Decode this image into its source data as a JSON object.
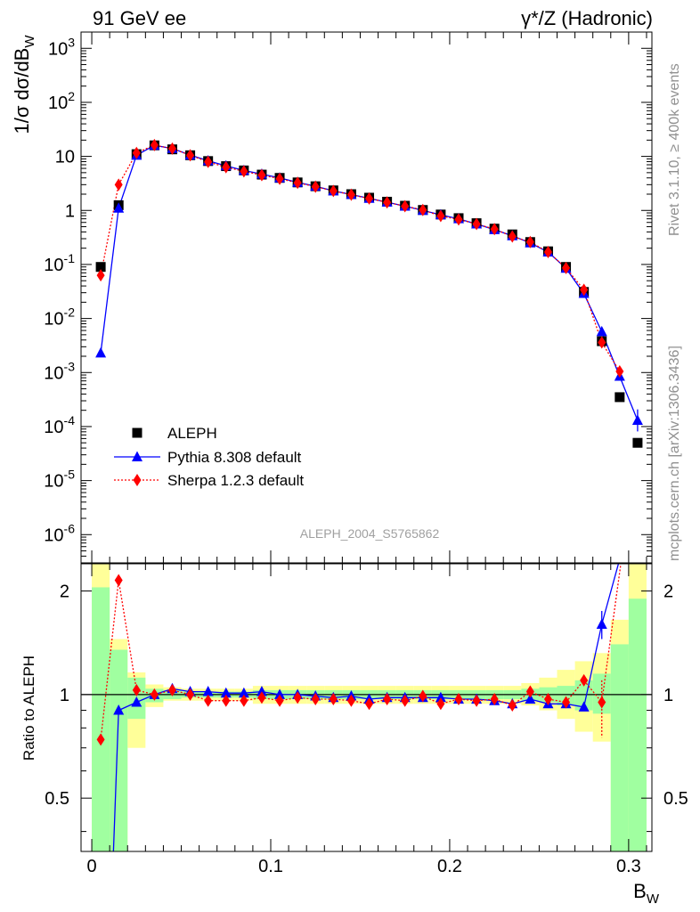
{
  "header": {
    "left": "91 GeV ee",
    "right": "γ*/Z (Hadronic)"
  },
  "side_labels": {
    "rivet": "Rivet 3.1.10, ≥ 400k events",
    "mcplots": "mcplots.cern.ch [arXiv:1306.3436]"
  },
  "watermark": "ALEPH_2004_S5765862",
  "chart_data": [
    {
      "type": "line",
      "panel": "main",
      "ylabel": "1/σ dσ/dB_W",
      "yscale": "log",
      "ylim": [
        3e-07,
        2000
      ],
      "xlim": [
        -0.006,
        0.313
      ],
      "ytick_labels": [
        "10^3",
        "10^2",
        "10",
        "1",
        "10^-1",
        "10^-2",
        "10^-3",
        "10^-4",
        "10^-5",
        "10^-6"
      ],
      "legend": [
        "ALEPH",
        "Pythia 8.308 default",
        "Sherpa 1.2.3 default"
      ],
      "legend_position": "lower-left",
      "series": [
        {
          "name": "ALEPH",
          "color": "#000000",
          "marker": "square",
          "x": [
            0.005,
            0.015,
            0.025,
            0.035,
            0.045,
            0.055,
            0.065,
            0.075,
            0.085,
            0.095,
            0.105,
            0.115,
            0.125,
            0.135,
            0.145,
            0.155,
            0.165,
            0.175,
            0.185,
            0.195,
            0.205,
            0.215,
            0.225,
            0.235,
            0.245,
            0.255,
            0.265,
            0.275,
            0.285,
            0.295,
            0.305
          ],
          "values": [
            0.09,
            1.25,
            11,
            16,
            13.5,
            10.5,
            8.2,
            6.6,
            5.5,
            4.6,
            4.0,
            3.3,
            2.8,
            2.35,
            2.0,
            1.72,
            1.45,
            1.22,
            1.02,
            0.84,
            0.72,
            0.58,
            0.46,
            0.36,
            0.26,
            0.175,
            0.09,
            0.031,
            0.0038,
            0.00035,
            5e-05
          ]
        },
        {
          "name": "Pythia 8.308 default",
          "color": "#0000ff",
          "marker": "triangle",
          "line": "solid",
          "x": [
            0.005,
            0.015,
            0.025,
            0.035,
            0.045,
            0.055,
            0.065,
            0.075,
            0.085,
            0.095,
            0.105,
            0.115,
            0.125,
            0.135,
            0.145,
            0.155,
            0.165,
            0.175,
            0.185,
            0.195,
            0.205,
            0.215,
            0.225,
            0.235,
            0.245,
            0.255,
            0.265,
            0.275,
            0.285,
            0.295,
            0.305
          ],
          "values": [
            0.0023,
            1.1,
            10.5,
            16,
            14,
            10.6,
            8.3,
            6.7,
            5.5,
            4.7,
            4.0,
            3.3,
            2.8,
            2.3,
            1.97,
            1.67,
            1.42,
            1.2,
            1.0,
            0.83,
            0.7,
            0.56,
            0.44,
            0.34,
            0.25,
            0.17,
            0.085,
            0.029,
            0.0057,
            0.00085,
            0.00013
          ]
        },
        {
          "name": "Sherpa 1.2.3 default",
          "color": "#ff0000",
          "marker": "diamond",
          "line": "dotted",
          "x": [
            0.005,
            0.015,
            0.025,
            0.035,
            0.045,
            0.055,
            0.065,
            0.075,
            0.085,
            0.095,
            0.105,
            0.115,
            0.125,
            0.135,
            0.145,
            0.155,
            0.165,
            0.175,
            0.185,
            0.195,
            0.205,
            0.215,
            0.225,
            0.235,
            0.245,
            0.255,
            0.265,
            0.275,
            0.285,
            0.295
          ],
          "values": [
            0.063,
            3.0,
            11.6,
            16.2,
            13.9,
            10.5,
            7.9,
            6.3,
            5.3,
            4.5,
            3.85,
            3.25,
            2.75,
            2.3,
            1.95,
            1.66,
            1.41,
            1.2,
            1.02,
            0.79,
            0.68,
            0.56,
            0.45,
            0.33,
            0.26,
            0.17,
            0.086,
            0.034,
            0.0036,
            0.00105
          ]
        }
      ]
    },
    {
      "type": "line",
      "panel": "ratio",
      "ylabel": "Ratio to ALEPH",
      "xlabel": "B_W",
      "yscale": "log",
      "ylim": [
        0.35,
        2.4
      ],
      "xlim": [
        -0.006,
        0.313
      ],
      "ytick_labels": [
        "0.5",
        "1",
        "2"
      ],
      "xtick_labels": [
        "0",
        "0.1",
        "0.2",
        "0.3"
      ],
      "band_colors": {
        "inner": "#a0ffa0",
        "outer": "#ffff99"
      },
      "bands": {
        "x_edges": [
          0.0,
          0.01,
          0.02,
          0.03,
          0.04,
          0.05,
          0.06,
          0.07,
          0.08,
          0.09,
          0.1,
          0.11,
          0.12,
          0.13,
          0.14,
          0.15,
          0.16,
          0.17,
          0.18,
          0.19,
          0.2,
          0.21,
          0.22,
          0.23,
          0.24,
          0.25,
          0.26,
          0.27,
          0.28,
          0.29,
          0.3,
          0.31
        ],
        "inner_low": [
          0.3,
          0.3,
          0.85,
          0.95,
          0.97,
          0.98,
          0.98,
          0.98,
          0.98,
          0.97,
          0.97,
          0.97,
          0.97,
          0.97,
          0.97,
          0.97,
          0.97,
          0.97,
          0.97,
          0.97,
          0.97,
          0.97,
          0.97,
          0.97,
          0.96,
          0.95,
          0.93,
          0.9,
          0.88,
          0.3,
          0.3
        ],
        "inner_high": [
          2.05,
          1.35,
          1.12,
          1.04,
          1.03,
          1.02,
          1.02,
          1.02,
          1.02,
          1.03,
          1.03,
          1.03,
          1.03,
          1.03,
          1.03,
          1.03,
          1.03,
          1.03,
          1.03,
          1.03,
          1.03,
          1.03,
          1.03,
          1.03,
          1.04,
          1.05,
          1.06,
          1.1,
          1.15,
          1.4,
          1.9
        ],
        "outer_low": [
          0.3,
          0.3,
          0.7,
          0.92,
          0.96,
          0.96,
          0.96,
          0.96,
          0.96,
          0.94,
          0.94,
          0.94,
          0.94,
          0.94,
          0.94,
          0.94,
          0.94,
          0.94,
          0.94,
          0.94,
          0.94,
          0.94,
          0.94,
          0.94,
          0.93,
          0.9,
          0.85,
          0.78,
          0.73,
          0.3,
          0.3
        ],
        "outer_high": [
          2.4,
          1.45,
          1.16,
          1.07,
          1.05,
          1.04,
          1.04,
          1.04,
          1.04,
          1.06,
          1.06,
          1.06,
          1.06,
          1.06,
          1.06,
          1.06,
          1.06,
          1.06,
          1.06,
          1.06,
          1.06,
          1.06,
          1.06,
          1.06,
          1.08,
          1.12,
          1.18,
          1.25,
          1.32,
          1.65,
          2.4
        ]
      },
      "series": [
        {
          "name": "Pythia 8.308 default",
          "color": "#0000ff",
          "marker": "triangle",
          "line": "solid",
          "x": [
            0.015,
            0.025,
            0.035,
            0.045,
            0.055,
            0.065,
            0.075,
            0.085,
            0.095,
            0.105,
            0.115,
            0.125,
            0.135,
            0.145,
            0.155,
            0.165,
            0.175,
            0.185,
            0.195,
            0.205,
            0.215,
            0.225,
            0.235,
            0.245,
            0.255,
            0.265,
            0.275,
            0.285
          ],
          "values": [
            0.9,
            0.95,
            1.0,
            1.04,
            1.02,
            1.02,
            1.01,
            1.01,
            1.02,
            1.0,
            1.0,
            0.99,
            0.98,
            0.99,
            0.97,
            0.98,
            0.98,
            0.98,
            0.98,
            0.97,
            0.97,
            0.96,
            0.94,
            0.97,
            0.94,
            0.94,
            0.92,
            1.6
          ]
        },
        {
          "name": "Sherpa 1.2.3 default",
          "color": "#ff0000",
          "marker": "diamond",
          "line": "dotted",
          "x": [
            0.005,
            0.015,
            0.025,
            0.035,
            0.045,
            0.055,
            0.065,
            0.075,
            0.085,
            0.095,
            0.105,
            0.115,
            0.125,
            0.135,
            0.145,
            0.155,
            0.165,
            0.175,
            0.185,
            0.195,
            0.205,
            0.215,
            0.225,
            0.235,
            0.245,
            0.255,
            0.265,
            0.275,
            0.285
          ],
          "values": [
            0.74,
            2.15,
            1.03,
            1.0,
            1.03,
            1.0,
            0.96,
            0.96,
            0.96,
            0.98,
            0.96,
            0.98,
            0.97,
            0.97,
            0.96,
            0.94,
            0.97,
            0.96,
            0.99,
            0.94,
            0.97,
            0.96,
            0.97,
            0.93,
            1.02,
            0.97,
            0.95,
            1.1,
            0.95
          ]
        }
      ]
    }
  ]
}
